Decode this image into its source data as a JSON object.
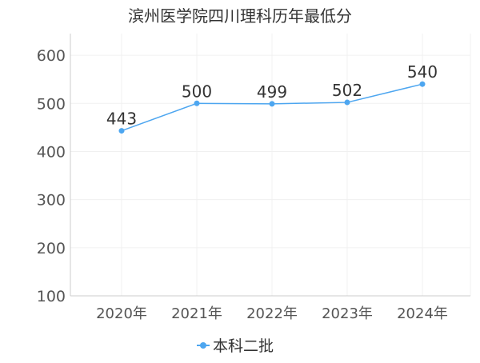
{
  "chart_data": {
    "type": "line",
    "title": "滨州医学院四川理科历年最低分",
    "categories": [
      "2020年",
      "2021年",
      "2022年",
      "2023年",
      "2024年"
    ],
    "series": [
      {
        "name": "本科二批",
        "values": [
          443,
          500,
          499,
          502,
          540
        ]
      }
    ],
    "ylim": [
      100,
      600
    ],
    "yticks": [
      100,
      200,
      300,
      400,
      500,
      600
    ],
    "grid": true,
    "legend_position": "bottom",
    "colors": {
      "series": "#4da6f0",
      "text": "#333333",
      "axis_text": "#555555",
      "grid": "#f0f0f0",
      "axis": "#cccccc"
    }
  }
}
